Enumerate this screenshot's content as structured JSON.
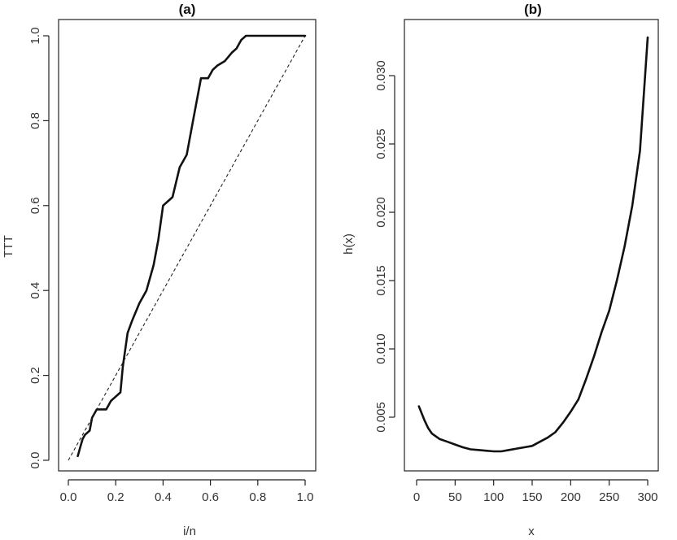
{
  "chart_data": [
    {
      "type": "line",
      "title": "(a)",
      "xlabel": "i/n",
      "ylabel": "TTT",
      "xlim": [
        0.0,
        1.0
      ],
      "ylim": [
        0.0,
        1.0
      ],
      "xticks": [
        0.0,
        0.2,
        0.4,
        0.6,
        0.8,
        1.0
      ],
      "xtick_labels": [
        "0.0",
        "0.2",
        "0.4",
        "0.6",
        "0.8",
        "1.0"
      ],
      "yticks": [
        0.0,
        0.2,
        0.4,
        0.6,
        0.8,
        1.0
      ],
      "ytick_labels": [
        "0.0",
        "0.2",
        "0.4",
        "0.6",
        "0.8",
        "1.0"
      ],
      "grid": false,
      "series": [
        {
          "name": "TTT",
          "style": "solid",
          "x": [
            0.04,
            0.05,
            0.06,
            0.07,
            0.09,
            0.1,
            0.12,
            0.13,
            0.16,
            0.18,
            0.2,
            0.22,
            0.23,
            0.25,
            0.27,
            0.3,
            0.33,
            0.36,
            0.38,
            0.4,
            0.42,
            0.44,
            0.47,
            0.5,
            0.53,
            0.56,
            0.59,
            0.61,
            0.63,
            0.66,
            0.69,
            0.71,
            0.73,
            0.75,
            0.77,
            0.8,
            0.85,
            0.9,
            0.95,
            1.0
          ],
          "y": [
            0.01,
            0.03,
            0.05,
            0.06,
            0.07,
            0.1,
            0.12,
            0.12,
            0.12,
            0.14,
            0.15,
            0.16,
            0.22,
            0.3,
            0.33,
            0.37,
            0.4,
            0.46,
            0.52,
            0.6,
            0.61,
            0.62,
            0.69,
            0.72,
            0.81,
            0.9,
            0.9,
            0.92,
            0.93,
            0.94,
            0.96,
            0.97,
            0.99,
            1.0,
            1.0,
            1.0,
            1.0,
            1.0,
            1.0,
            1.0
          ]
        },
        {
          "name": "diagonal",
          "style": "dashed",
          "x": [
            0.0,
            1.0
          ],
          "y": [
            0.0,
            1.0
          ]
        }
      ]
    },
    {
      "type": "line",
      "title": "(b)",
      "xlabel": "x",
      "ylabel": "h(x)",
      "xlim": [
        0,
        300
      ],
      "ylim": [
        0.002,
        0.033
      ],
      "xticks": [
        0,
        50,
        100,
        150,
        200,
        250,
        300
      ],
      "xtick_labels": [
        "0",
        "50",
        "100",
        "150",
        "200",
        "250",
        "300"
      ],
      "yticks": [
        0.005,
        0.01,
        0.015,
        0.02,
        0.025,
        0.03
      ],
      "ytick_labels": [
        "0.005",
        "0.010",
        "0.015",
        "0.020",
        "0.025",
        "0.030"
      ],
      "grid": false,
      "series": [
        {
          "name": "h(x)",
          "style": "solid",
          "x": [
            3,
            10,
            15,
            20,
            30,
            40,
            50,
            60,
            70,
            80,
            90,
            100,
            110,
            120,
            130,
            140,
            150,
            160,
            170,
            180,
            190,
            200,
            210,
            220,
            230,
            240,
            250,
            260,
            270,
            280,
            290,
            300
          ],
          "y": [
            0.0058,
            0.0048,
            0.0042,
            0.0038,
            0.0034,
            0.0032,
            0.003,
            0.0028,
            0.00265,
            0.0026,
            0.00255,
            0.0025,
            0.0025,
            0.0026,
            0.0027,
            0.0028,
            0.0029,
            0.0032,
            0.0035,
            0.0039,
            0.0046,
            0.0054,
            0.0063,
            0.0078,
            0.0094,
            0.0112,
            0.0128,
            0.015,
            0.0175,
            0.0205,
            0.0245,
            0.0328
          ]
        }
      ]
    }
  ]
}
